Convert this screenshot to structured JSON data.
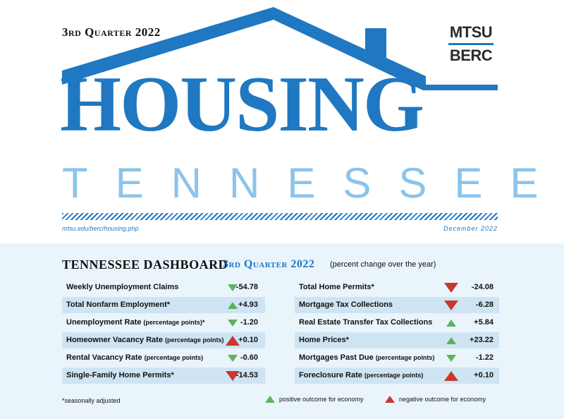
{
  "header": {
    "quarter_label": "3rd Quarter 2022",
    "logo_line1": "MTSU",
    "logo_line2": "BERC",
    "title_main": "HOUSING",
    "title_sub": "TENNESSEE",
    "url": "mtsu.edu/berc/housing.php",
    "date": "December 2022"
  },
  "dashboard": {
    "title": "TENNESSEE DASHBOARD",
    "quarter": "3rd Quarter 2022",
    "note": "(percent change over the year)",
    "left_rows": [
      {
        "label": "Weekly Unemployment Claims",
        "sub": "",
        "value": "-54.78",
        "outcome": "positive",
        "direction": "down",
        "size": "small"
      },
      {
        "label": "Total Nonfarm Employment*",
        "sub": "",
        "value": "+4.93",
        "outcome": "positive",
        "direction": "up",
        "size": "small"
      },
      {
        "label": "Unemployment Rate ",
        "sub": "(percentage points)*",
        "value": "-1.20",
        "outcome": "positive",
        "direction": "down",
        "size": "small"
      },
      {
        "label": "Homeowner Vacancy Rate ",
        "sub": "(percentage points)",
        "value": "+0.10",
        "outcome": "negative",
        "direction": "up",
        "size": "large"
      },
      {
        "label": "Rental Vacancy Rate ",
        "sub": "(percentage points)",
        "value": "-0.60",
        "outcome": "positive",
        "direction": "down",
        "size": "small"
      },
      {
        "label": "Single-Family Home Permits*",
        "sub": "",
        "value": "-14.53",
        "outcome": "negative",
        "direction": "down",
        "size": "large"
      }
    ],
    "right_rows": [
      {
        "label": "Total Home Permits*",
        "sub": "",
        "value": "-24.08",
        "outcome": "negative",
        "direction": "down",
        "size": "large"
      },
      {
        "label": "Mortgage Tax Collections",
        "sub": "",
        "value": "-6.28",
        "outcome": "negative",
        "direction": "down",
        "size": "large"
      },
      {
        "label": "Real Estate Transfer Tax Collections",
        "sub": "",
        "value": "+5.84",
        "outcome": "positive",
        "direction": "up",
        "size": "small"
      },
      {
        "label": "Home Prices*",
        "sub": "",
        "value": "+23.22",
        "outcome": "positive",
        "direction": "up",
        "size": "small"
      },
      {
        "label": "Mortgages Past Due ",
        "sub": "(percentage points)",
        "value": "-1.22",
        "outcome": "positive",
        "direction": "down",
        "size": "small"
      },
      {
        "label": "Foreclosure Rate ",
        "sub": "(percentage points)",
        "value": "+0.10",
        "outcome": "negative",
        "direction": "up",
        "size": "large"
      }
    ]
  },
  "footer": {
    "footnote": "*seasonally adjusted",
    "legend_positive": "positive outcome for economy",
    "legend_negative": "negative outcome for economy"
  },
  "colors": {
    "brand_blue": "#1f78c1",
    "light_blue": "#8cc4ea",
    "positive_green": "#5cb35c",
    "negative_red": "#c8382e"
  }
}
